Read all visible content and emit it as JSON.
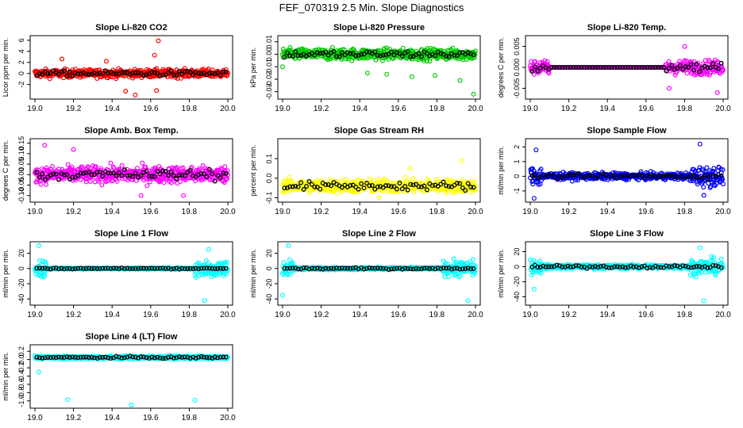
{
  "title": "FEF_070319  2.5 Min. Slope Diagnostics",
  "chart_data": [
    {
      "type": "scatter",
      "title": "Slope Li-820 CO2",
      "ylabel": "Licor ppm per min.",
      "xlim": [
        19.0,
        20.0
      ],
      "ylim": [
        -4.2,
        6.4
      ],
      "xticks": [
        "19.0",
        "19.2",
        "19.4",
        "19.6",
        "19.8",
        "20.0"
      ],
      "yticks": [
        -2,
        0,
        2,
        4,
        6
      ],
      "ytick_labels": [
        "-2",
        "0",
        "2",
        "4",
        "6"
      ],
      "primary_color": "#ff0000",
      "spread": 1.3,
      "outliers": [
        [
          19.64,
          5.9
        ],
        [
          19.52,
          -3.9
        ],
        [
          19.47,
          -3.2
        ],
        [
          19.14,
          2.6
        ],
        [
          19.62,
          3.3
        ],
        [
          19.63,
          -3.1
        ],
        [
          19.37,
          2.2
        ]
      ]
    },
    {
      "type": "scatter",
      "title": "Slope Li-820 Pressure",
      "ylabel": "kPa per min.",
      "xlim": [
        19.0,
        20.0
      ],
      "ylim": [
        -0.034,
        0.013
      ],
      "xticks": [
        "19.0",
        "19.2",
        "19.4",
        "19.6",
        "19.8",
        "20.0"
      ],
      "yticks": [
        -0.03,
        -0.02,
        -0.01,
        0.0,
        0.01
      ],
      "ytick_labels": [
        "-0.03",
        "-0.02",
        "-0.01",
        "0.00",
        "0.01"
      ],
      "primary_color": "#00cc00",
      "spread": 0.008,
      "offset": 0.0,
      "outliers": [
        [
          19.99,
          -0.032
        ],
        [
          19.67,
          -0.018
        ],
        [
          19.79,
          -0.017
        ],
        [
          19.44,
          -0.015
        ],
        [
          19.0,
          -0.01
        ],
        [
          19.92,
          -0.021
        ],
        [
          19.54,
          -0.016
        ]
      ]
    },
    {
      "type": "scatter",
      "title": "Slope Li-820 Temp.",
      "ylabel": "degrees C per min.",
      "xlim": [
        19.0,
        20.0
      ],
      "ylim": [
        -0.007,
        0.007
      ],
      "xticks": [
        "19.0",
        "19.2",
        "19.4",
        "19.6",
        "19.8",
        "20.0"
      ],
      "yticks": [
        -0.005,
        0.0,
        0.005
      ],
      "ytick_labels": [
        "-0.005",
        "0.000",
        "0.005"
      ],
      "primary_color": "#ff00ff",
      "spread": 0.003,
      "flat_middle": true,
      "outliers": [
        [
          19.8,
          0.005
        ],
        [
          19.72,
          -0.005
        ],
        [
          19.97,
          -0.006
        ]
      ]
    },
    {
      "type": "scatter",
      "title": "Slope Amb. Box Temp.",
      "ylabel": "degrees C per min.",
      "xlim": [
        19.0,
        20.0
      ],
      "ylim": [
        -0.12,
        0.16
      ],
      "xticks": [
        "19.0",
        "19.2",
        "19.4",
        "19.6",
        "19.8",
        "20.0"
      ],
      "yticks": [
        -0.1,
        -0.05,
        0.0,
        0.05,
        0.1,
        0.15
      ],
      "ytick_labels": [
        "-0.10",
        "-0.05",
        "0.00",
        "0.05",
        "0.10",
        "0.15"
      ],
      "primary_color": "#ff00ff",
      "spread": 0.07,
      "outliers": [
        [
          19.05,
          0.14
        ],
        [
          19.2,
          0.12
        ],
        [
          19.77,
          -0.1
        ],
        [
          19.55,
          -0.1
        ]
      ]
    },
    {
      "type": "scatter",
      "title": "Slope Gas Stream RH",
      "ylabel": "percent per min.",
      "xlim": [
        19.0,
        20.0
      ],
      "ylim": [
        -0.11,
        0.19
      ],
      "xticks": [
        "19.0",
        "19.2",
        "19.4",
        "19.6",
        "19.8",
        "20.0"
      ],
      "yticks": [
        -0.1,
        0.0,
        0.1
      ],
      "ytick_labels": [
        "-0.1",
        "0.0",
        "0.1"
      ],
      "primary_color": "#ffff00",
      "spread": 0.06,
      "offset": -0.04,
      "outliers": [
        [
          19.93,
          0.09
        ],
        [
          19.66,
          0.05
        ],
        [
          19.5,
          -0.1
        ]
      ]
    },
    {
      "type": "scatter",
      "title": "Slope Sample Flow",
      "ylabel": "ml/min per min.",
      "xlim": [
        19.0,
        20.0
      ],
      "ylim": [
        -1.6,
        2.4
      ],
      "xticks": [
        "19.0",
        "19.2",
        "19.4",
        "19.6",
        "19.8",
        "20.0"
      ],
      "yticks": [
        -1,
        0,
        1,
        2
      ],
      "ytick_labels": [
        "-1",
        "0",
        "1",
        "2"
      ],
      "primary_color": "#0000ff",
      "spread": 0.4,
      "noisy_edges": true,
      "outliers": [
        [
          19.88,
          2.2
        ],
        [
          19.02,
          -1.5
        ],
        [
          19.03,
          1.8
        ],
        [
          19.9,
          -1.3
        ]
      ]
    },
    {
      "type": "scatter",
      "title": "Slope Line 1 Flow",
      "ylabel": "ml/min per min.",
      "xlim": [
        19.0,
        20.0
      ],
      "ylim": [
        -45,
        32
      ],
      "xticks": [
        "19.0",
        "19.2",
        "19.4",
        "19.6",
        "19.8",
        "20.0"
      ],
      "yticks": [
        -40,
        -20,
        0,
        20
      ],
      "ytick_labels": [
        "-40",
        "-20",
        "0",
        "20"
      ],
      "primary_color": "#00ffff",
      "spread": 2,
      "noisy_edges": true,
      "edge_spread": 22,
      "outliers": [
        [
          19.88,
          -42
        ],
        [
          19.02,
          30
        ],
        [
          19.9,
          25
        ]
      ]
    },
    {
      "type": "scatter",
      "title": "Slope Line 2 Flow",
      "ylabel": "ml/min per min.",
      "xlim": [
        19.0,
        20.0
      ],
      "ylim": [
        -45,
        32
      ],
      "xticks": [
        "19.0",
        "19.2",
        "19.4",
        "19.6",
        "19.8",
        "20.0"
      ],
      "yticks": [
        -40,
        -20,
        0,
        20
      ],
      "ytick_labels": [
        "-40",
        "-20",
        "0",
        "20"
      ],
      "primary_color": "#00ffff",
      "spread": 3,
      "noisy_edges": true,
      "edge_spread": 18,
      "outliers": [
        [
          19.03,
          30
        ],
        [
          19.96,
          -42
        ],
        [
          19.0,
          -35
        ]
      ]
    },
    {
      "type": "scatter",
      "title": "Slope Line 3 Flow",
      "ylabel": "ml/min per min.",
      "xlim": [
        19.0,
        20.0
      ],
      "ylim": [
        -48,
        30
      ],
      "xticks": [
        "19.0",
        "19.2",
        "19.4",
        "19.6",
        "19.8",
        "20.0"
      ],
      "yticks": [
        -40,
        -20,
        0,
        20
      ],
      "ytick_labels": [
        "-40",
        "-20",
        "0",
        "20"
      ],
      "primary_color": "#00ffff",
      "spread": 5,
      "noisy_edges": true,
      "edge_spread": 18,
      "outliers": [
        [
          19.9,
          -45
        ],
        [
          19.88,
          25
        ],
        [
          19.02,
          -30
        ]
      ]
    },
    {
      "type": "scatter",
      "title": "Slope Line 4 (LT) Flow",
      "ylabel": "ml/min per min.",
      "xlim": [
        19.0,
        20.0
      ],
      "ylim": [
        -1.12,
        0.3
      ],
      "xticks": [
        "19.0",
        "19.2",
        "19.4",
        "19.6",
        "19.8",
        "20.0"
      ],
      "yticks": [
        -1.0,
        -0.8,
        -0.6,
        -0.4,
        -0.2,
        0.0,
        0.2
      ],
      "ytick_labels": [
        "-1.0",
        "-0.8",
        "-0.6",
        "-0.4",
        "-0.2",
        "0.0",
        "0.2"
      ],
      "primary_color": "#00ffff",
      "spread": 0.07,
      "offset": 0.05,
      "outliers": [
        [
          19.5,
          -1.1
        ],
        [
          19.83,
          -0.98
        ],
        [
          19.17,
          -0.97
        ],
        [
          19.02,
          -0.3
        ]
      ]
    }
  ]
}
